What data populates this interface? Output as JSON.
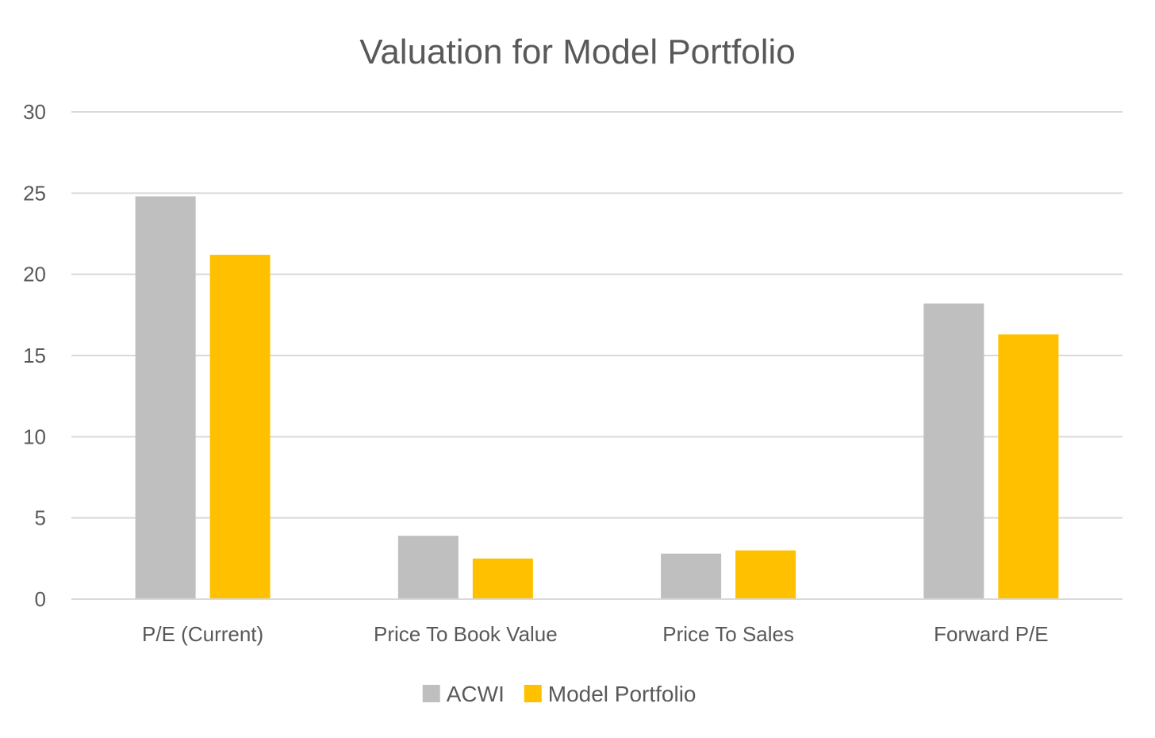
{
  "chart_data": {
    "type": "bar",
    "title": "Valuation for Model Portfolio",
    "xlabel": "",
    "ylabel": "",
    "categories": [
      "P/E (Current)",
      "Price To Book Value",
      "Price To Sales",
      "Forward P/E"
    ],
    "series": [
      {
        "name": "ACWI",
        "values": [
          24.8,
          3.9,
          2.8,
          18.2
        ],
        "color": "#bfbfbf"
      },
      {
        "name": "Model Portfolio",
        "values": [
          21.2,
          2.5,
          3.0,
          16.3
        ],
        "color": "#ffc000"
      }
    ],
    "ylim": [
      0,
      30
    ],
    "yticks": [
      "0",
      "5",
      "10",
      "15",
      "20",
      "25",
      "30"
    ],
    "grid": true,
    "gridline_color": "#d9d9d9",
    "legend_position": "bottom"
  }
}
